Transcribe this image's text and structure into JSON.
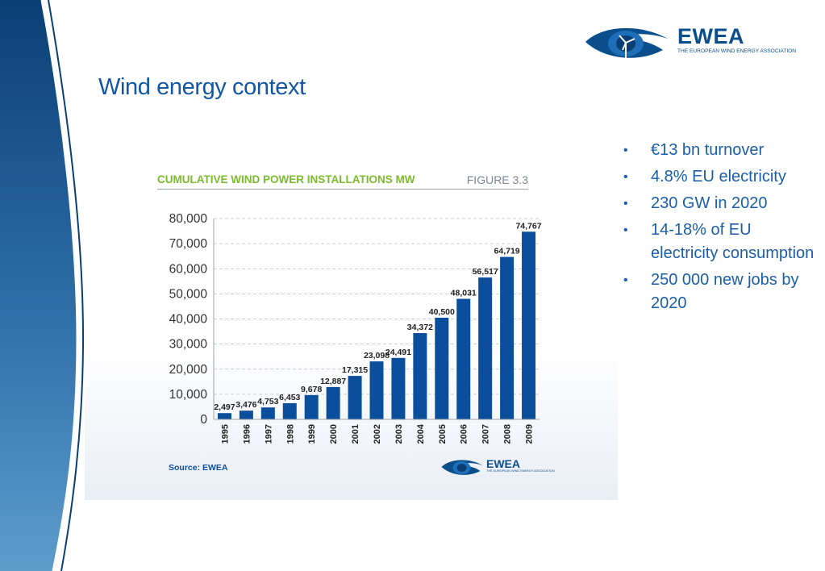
{
  "slide": {
    "title": "Wind energy context",
    "bullets": [
      "€13 bn turnover",
      "4.8% EU electricity",
      "230 GW in 2020",
      "14-18% of EU electricity consumption",
      "250 000 new jobs by 2020"
    ]
  },
  "logo": {
    "word": "EWEA",
    "subtitle": "THE EUROPEAN WIND ENERGY ASSOCIATION"
  },
  "chart_panel": {
    "source": "Source: EWEA"
  },
  "chart_data": {
    "type": "bar",
    "title": "CUMULATIVE WIND POWER INSTALLATIONS MW",
    "figure_label": "FIGURE 3.3",
    "xlabel": "",
    "ylabel": "",
    "categories": [
      "1995",
      "1996",
      "1997",
      "1998",
      "1999",
      "2000",
      "2001",
      "2002",
      "2003",
      "2004",
      "2005",
      "2006",
      "2007",
      "2008",
      "2009"
    ],
    "values": [
      2497,
      3476,
      4753,
      6453,
      9678,
      12887,
      17315,
      23098,
      24491,
      34372,
      40500,
      48031,
      56517,
      64719,
      74767
    ],
    "value_labels": [
      "2,497",
      "3,476",
      "4,753",
      "6,453",
      "9,678",
      "12,887",
      "17,315",
      "23,098",
      "24,491",
      "34,372",
      "40,500",
      "48,031",
      "56,517",
      "64,719",
      "74,767"
    ],
    "ylim": [
      0,
      80000
    ],
    "yticks": [
      0,
      10000,
      20000,
      30000,
      40000,
      50000,
      60000,
      70000,
      80000
    ],
    "ytick_labels": [
      "0",
      "10,000",
      "20,000",
      "30,000",
      "40,000",
      "50,000",
      "60,000",
      "70,000",
      "80,000"
    ],
    "grid": true,
    "grid_style": "dashed",
    "legend": "none",
    "bar_color": "#0b4f9c"
  }
}
